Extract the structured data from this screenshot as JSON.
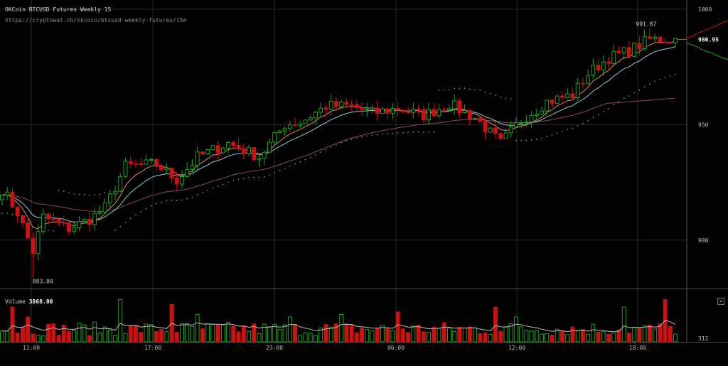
{
  "header": {
    "title": "OKCoin BTCUSD Futures Weekly 15",
    "url": "https://cryptowat.ch/okcoin/btcusd-weekly-futures/15m"
  },
  "volume": {
    "label": "Volume",
    "value": "3868.00",
    "close_icon": "close-icon",
    "close_glyph": "×"
  },
  "colors": {
    "up": "#22a022",
    "down": "#cc1111",
    "grid": "#2a2a2a",
    "ema_fast": "#e08a5c",
    "ema_mid": "#8ecfd6",
    "ema_slow": "#8a4a52",
    "sar": "#9a9a9a",
    "depth_bid": "#22a022",
    "depth_ask": "#cc1111"
  },
  "chart_data": [
    {
      "type": "candlestick",
      "title": "OKCoin BTCUSD Futures Weekly 15",
      "interval": "15m",
      "candle_count": 132,
      "x_ticks": [
        "11:00",
        "17:00",
        "23:00",
        "06:00",
        "12:00",
        "18:00"
      ],
      "y_ticks": [
        900,
        950,
        1000
      ],
      "ylim": [
        879,
        1004
      ],
      "last_price": "986.95",
      "annotations": {
        "high": "991.87",
        "low": "883.80"
      },
      "anchors": [
        {
          "i": 0,
          "p": 922
        },
        {
          "i": 3,
          "p": 912
        },
        {
          "i": 6,
          "p": 895
        },
        {
          "i": 8,
          "p": 910
        },
        {
          "i": 13,
          "p": 905
        },
        {
          "i": 17,
          "p": 909
        },
        {
          "i": 20,
          "p": 914
        },
        {
          "i": 24,
          "p": 932
        },
        {
          "i": 30,
          "p": 933
        },
        {
          "i": 34,
          "p": 926
        },
        {
          "i": 38,
          "p": 936
        },
        {
          "i": 44,
          "p": 942
        },
        {
          "i": 50,
          "p": 936
        },
        {
          "i": 55,
          "p": 950
        },
        {
          "i": 58,
          "p": 951
        },
        {
          "i": 63,
          "p": 958
        },
        {
          "i": 68,
          "p": 958
        },
        {
          "i": 72,
          "p": 955
        },
        {
          "i": 77,
          "p": 957
        },
        {
          "i": 82,
          "p": 954
        },
        {
          "i": 87,
          "p": 959
        },
        {
          "i": 92,
          "p": 953
        },
        {
          "i": 97,
          "p": 942
        },
        {
          "i": 101,
          "p": 952
        },
        {
          "i": 106,
          "p": 960
        },
        {
          "i": 111,
          "p": 963
        },
        {
          "i": 114,
          "p": 972
        },
        {
          "i": 118,
          "p": 979
        },
        {
          "i": 122,
          "p": 982
        },
        {
          "i": 126,
          "p": 987
        },
        {
          "i": 131,
          "p": 987
        }
      ]
    },
    {
      "type": "bar",
      "name": "Volume",
      "ylim": [
        0,
        3868
      ],
      "y_ticks": [
        312
      ],
      "spikes": [
        {
          "i": 2,
          "v": 0.7
        },
        {
          "i": 5,
          "v": 0.5
        },
        {
          "i": 23,
          "v": 0.85
        },
        {
          "i": 33,
          "v": 0.75
        },
        {
          "i": 38,
          "v": 0.55
        },
        {
          "i": 56,
          "v": 0.5
        },
        {
          "i": 66,
          "v": 0.55
        },
        {
          "i": 77,
          "v": 0.6
        },
        {
          "i": 96,
          "v": 0.7
        },
        {
          "i": 100,
          "v": 0.5
        },
        {
          "i": 121,
          "v": 0.7
        },
        {
          "i": 129,
          "v": 0.85
        }
      ]
    }
  ]
}
